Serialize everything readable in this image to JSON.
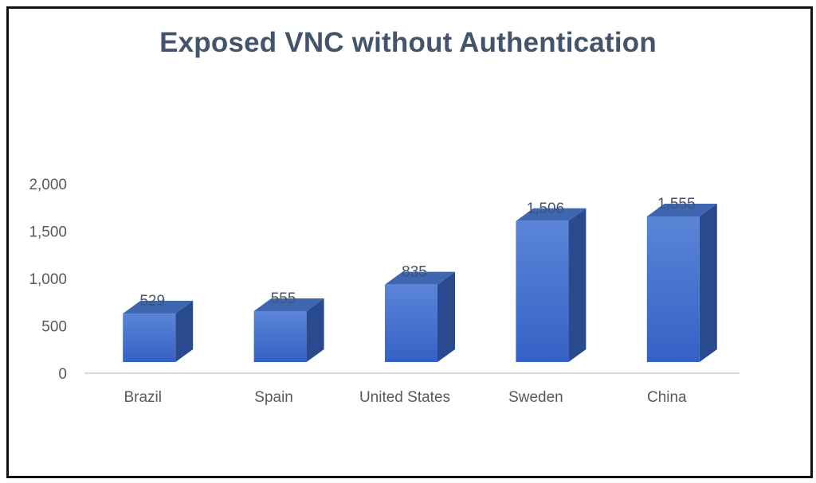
{
  "chart_data": {
    "type": "bar",
    "title": "Exposed VNC without Authentication",
    "xlabel": "",
    "ylabel": "",
    "categories": [
      "Brazil",
      "Spain",
      "United States",
      "Sweden",
      "China"
    ],
    "values": [
      529,
      555,
      835,
      1506,
      1555
    ],
    "data_labels": [
      "529",
      "555",
      "835",
      "1,506",
      "1,555"
    ],
    "yticks": [
      0,
      500,
      1000,
      1500,
      2000
    ],
    "ytick_labels": [
      "0",
      "500",
      "1,000",
      "1,500",
      "2,000"
    ],
    "ylim": [
      0,
      2000
    ],
    "grid": false,
    "legend": false,
    "style": "3d-column",
    "colors": {
      "front_top": "#5b85d6",
      "front_bottom": "#3561c6",
      "side": "#2a4a8f",
      "top": "#3f66b0",
      "text": "#44546a",
      "axis_text": "#595959",
      "axis_line": "#d9d9d9"
    }
  }
}
